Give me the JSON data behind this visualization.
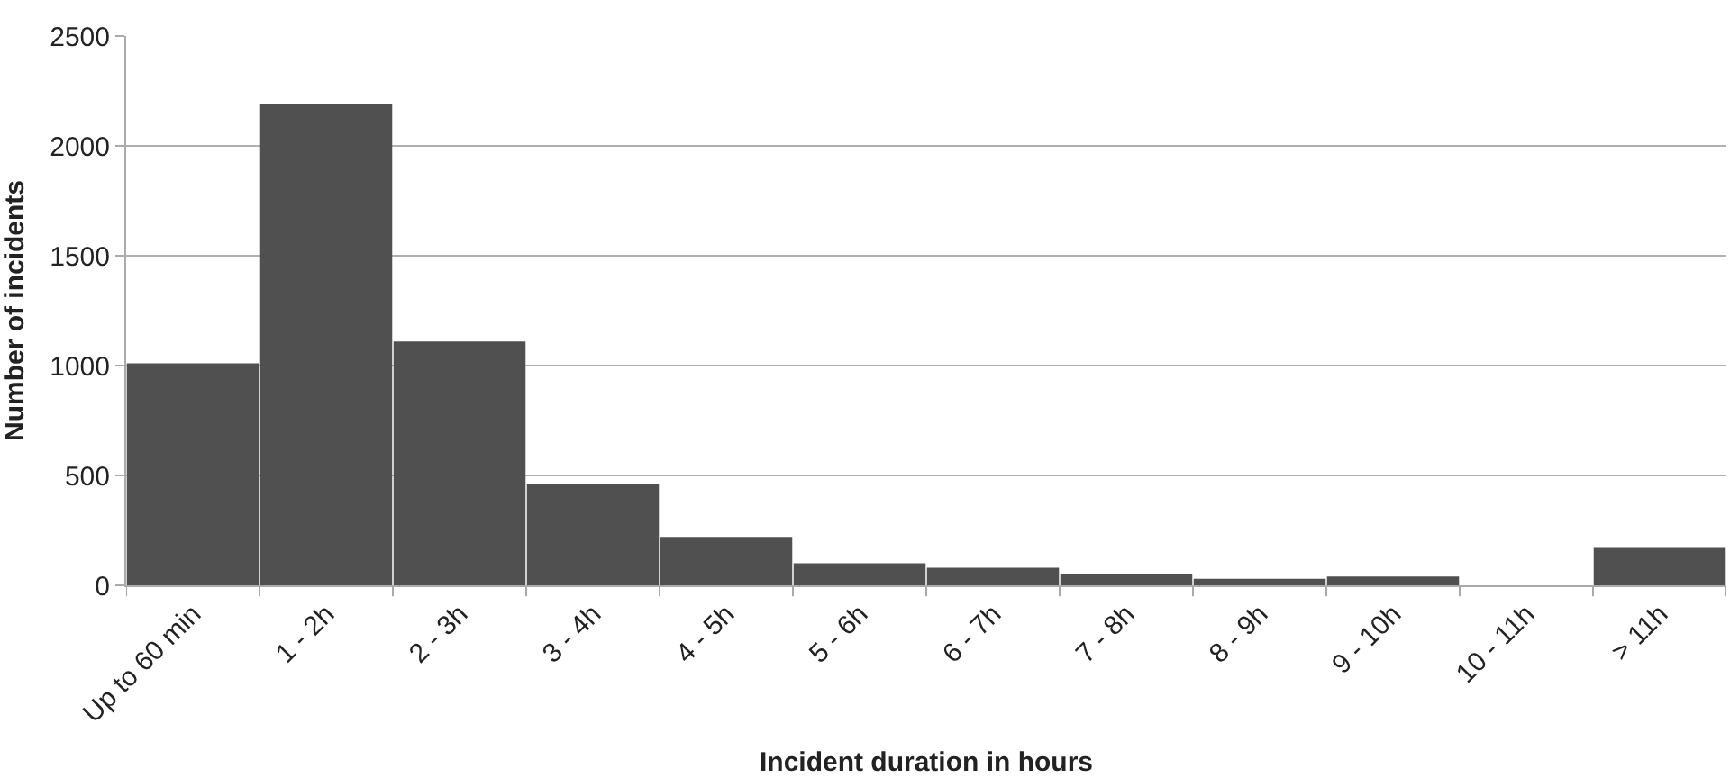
{
  "chart_data": {
    "type": "bar",
    "xlabel": "Incident duration in hours",
    "ylabel": "Number of incidents",
    "categories": [
      "Up to 60 min",
      "1 - 2h",
      "2 - 3h",
      "3 - 4h",
      "4 - 5h",
      "5 - 6h",
      "6 - 7h",
      "7 - 8h",
      "8 - 9h",
      "9 - 10h",
      "10 - 11h",
      "> 11h"
    ],
    "values": [
      1010,
      2190,
      1110,
      460,
      220,
      100,
      80,
      50,
      30,
      40,
      0,
      170
    ],
    "color": "#505050",
    "ylim": [
      0,
      2500
    ],
    "yticks": [
      0,
      500,
      1000,
      1500,
      2000,
      2500
    ],
    "grid": "y"
  }
}
